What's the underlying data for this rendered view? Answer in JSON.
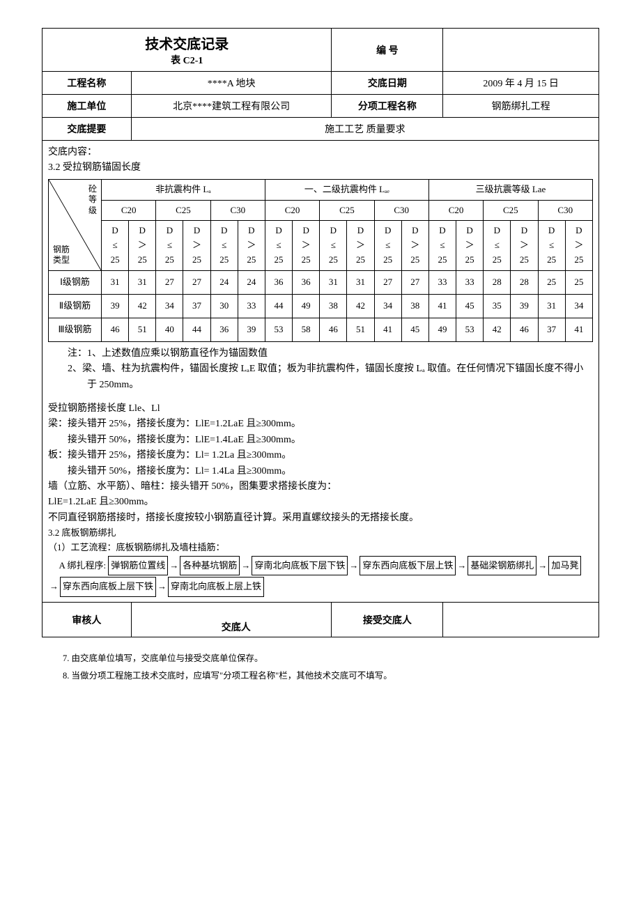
{
  "header": {
    "title": "技术交底记录",
    "subtitle": "表 C2-1",
    "code_label": "编  号",
    "code_value": "",
    "fields": {
      "project_name_label": "工程名称",
      "project_name_value": "****A 地块",
      "date_label": "交底日期",
      "date_value": "2009 年 4 月 15 日",
      "unit_label": "施工单位",
      "unit_value": "北京****建筑工程有限公司",
      "subproj_label": "分项工程名称",
      "subproj_value": "钢筋绑扎工程",
      "summary_label": "交底提要",
      "summary_value": "施工工艺    质量要求"
    }
  },
  "content": {
    "heading": "交底内容：",
    "section_title": "3.2 受拉钢筋锚固长度",
    "table": {
      "diag_top": "砼\n等\n级",
      "diag_bottom": "钢筋\n类型",
      "group_headers": [
        "非抗震构件 Lₐ",
        "一、二级抗震构件 Lₐₑ",
        "三级抗震等级 Lae"
      ],
      "sub_headers": [
        "C20",
        "C25",
        "C30",
        "C20",
        "C25",
        "C30",
        "C20",
        "C25",
        "C30"
      ],
      "leaf_le": "D\n≤\n25",
      "leaf_gt": "D\n＞\n25",
      "rows": [
        {
          "label": "Ⅰ级钢筋",
          "vals": [
            31,
            31,
            27,
            27,
            24,
            24,
            36,
            36,
            31,
            31,
            27,
            27,
            33,
            33,
            28,
            28,
            25,
            25
          ]
        },
        {
          "label": "Ⅱ级钢筋",
          "vals": [
            39,
            42,
            34,
            37,
            30,
            33,
            44,
            49,
            38,
            42,
            34,
            38,
            41,
            45,
            35,
            39,
            31,
            34
          ]
        },
        {
          "label": "Ⅲ级钢筋",
          "vals": [
            46,
            51,
            40,
            44,
            36,
            39,
            53,
            58,
            46,
            51,
            41,
            45,
            49,
            53,
            42,
            46,
            37,
            41
          ]
        }
      ]
    },
    "notes": {
      "n1": "注：1、上述数值应乘以钢筋直径作为锚固数值",
      "n2": "2、梁、墙、柱为抗震构件，锚固长度按 LₐE 取值；板为非抗震构件，锚固长度按 Lₐ 取值。在任何情况下锚固长度不得小于 250mm。"
    },
    "splice": {
      "title": "受拉钢筋搭接长度 Lle、Ll",
      "l1": "梁：接头错开 25%，搭接长度为：LlE=1.2LaE 且≥300mm。",
      "l2": "接头错开 50%，搭接长度为：LlE=1.4LaE 且≥300mm。",
      "l3": "板：接头错开 25%，搭接长度为：Ll= 1.2La 且≥300mm。",
      "l4": "接头错开 50%，搭接长度为：Ll= 1.4La 且≥300mm。",
      "l5": "墙（立筋、水平筋）、暗柱：接头错开 50%，图集要求搭接长度为：",
      "l6": "LlE=1.2LaE 且≥300mm。",
      "l7": "不同直径钢筋搭接时，搭接长度按较小钢筋直径计算。采用直螺纹接头的无搭接长度。"
    },
    "sec32": {
      "title": "3.2 底板钢筋绑扎",
      "p1": "（1）工艺流程：底板钢筋绑扎及墙柱插筋：",
      "seq_label": "A 绑扎程序:",
      "steps": [
        "弹钢筋位置线",
        "各种基坑钢筋",
        "穿南北向底板下层下铁",
        "穿东西向底板下层上铁",
        "基础梁钢筋绑扎",
        "加马凳",
        "穿东西向底板上层下铁",
        "穿南北向底板上层上铁"
      ]
    }
  },
  "signatures": {
    "auditor": "审核人",
    "disclosor": "交底人",
    "receiver": "接受交底人"
  },
  "footnotes": {
    "f1": "7.    由交底单位填写，交底单位与接受交底单位保存。",
    "f2": "8.    当做分项工程施工技术交底时，应填写\"分项工程名称\"栏，其他技术交底可不填写。"
  }
}
